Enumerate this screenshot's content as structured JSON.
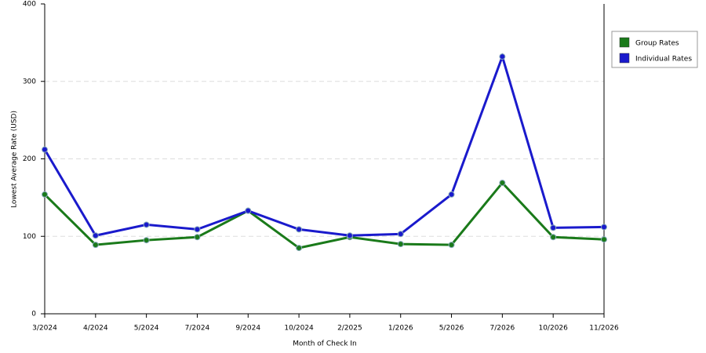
{
  "chart_data": {
    "type": "line",
    "x_label": "Month of Check In",
    "y_label": "Lowest Average Rate (USD)",
    "categories": [
      "3/2024",
      "4/2024",
      "5/2024",
      "7/2024",
      "9/2024",
      "10/2024",
      "2/2025",
      "1/2026",
      "5/2026",
      "7/2026",
      "10/2026",
      "11/2026"
    ],
    "series": [
      {
        "name": "Group Rates",
        "color": "#1a7a1a",
        "values": [
          154,
          89,
          95,
          99,
          133,
          85,
          99,
          90,
          89,
          169,
          99,
          96
        ]
      },
      {
        "name": "Individual Rates",
        "color": "#1a1acc",
        "values": [
          212,
          101,
          115,
          109,
          133,
          109,
          101,
          103,
          154,
          332,
          111,
          112
        ]
      }
    ],
    "ylim": [
      0,
      400
    ],
    "yticks": [
      0,
      100,
      200,
      300,
      400
    ],
    "grid": true,
    "legend": "right"
  }
}
